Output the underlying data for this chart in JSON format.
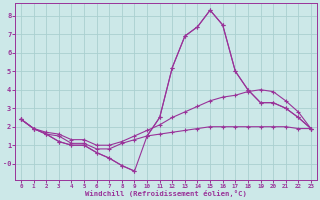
{
  "x": [
    0,
    1,
    2,
    3,
    4,
    5,
    6,
    7,
    8,
    9,
    10,
    11,
    12,
    13,
    14,
    15,
    16,
    17,
    18,
    19,
    20,
    21,
    22,
    23
  ],
  "line_spiky": [
    2.4,
    1.9,
    1.6,
    1.2,
    1.0,
    1.0,
    0.6,
    0.3,
    -0.1,
    -0.4,
    null,
    null,
    null,
    null,
    null,
    null,
    null,
    null,
    null,
    null,
    null,
    null,
    null,
    null
  ],
  "line_spiky2": [
    null,
    null,
    null,
    null,
    null,
    null,
    null,
    null,
    null,
    null,
    1.5,
    2.5,
    5.2,
    6.9,
    7.4,
    8.3,
    7.5,
    5.0,
    4.0,
    3.3,
    3.3,
    3.0,
    2.5,
    1.9
  ],
  "line_smooth_high": [
    2.4,
    1.9,
    1.7,
    1.6,
    1.3,
    1.3,
    1.0,
    1.0,
    1.2,
    1.5,
    1.8,
    2.1,
    2.5,
    2.8,
    3.1,
    3.4,
    3.6,
    3.7,
    3.9,
    4.0,
    3.9,
    3.4,
    2.8,
    1.9
  ],
  "line_smooth_low": [
    2.4,
    1.9,
    1.6,
    1.5,
    1.1,
    1.1,
    0.8,
    0.8,
    1.1,
    1.3,
    1.5,
    1.6,
    1.7,
    1.8,
    1.9,
    2.0,
    2.0,
    2.0,
    2.0,
    2.0,
    2.0,
    2.0,
    1.9,
    1.9
  ],
  "bg_color": "#cce8e8",
  "grid_color": "#aad0d0",
  "line_color": "#993399",
  "xlabel": "Windchill (Refroidissement éolien,°C)",
  "ylim": [
    -0.9,
    8.7
  ],
  "xlim": [
    -0.5,
    23.5
  ],
  "ytick_vals": [
    0,
    1,
    2,
    3,
    4,
    5,
    6,
    7,
    8
  ],
  "ytick_labels": [
    "-0",
    "1",
    "2",
    "3",
    "4",
    "5",
    "6",
    "7",
    "8"
  ]
}
